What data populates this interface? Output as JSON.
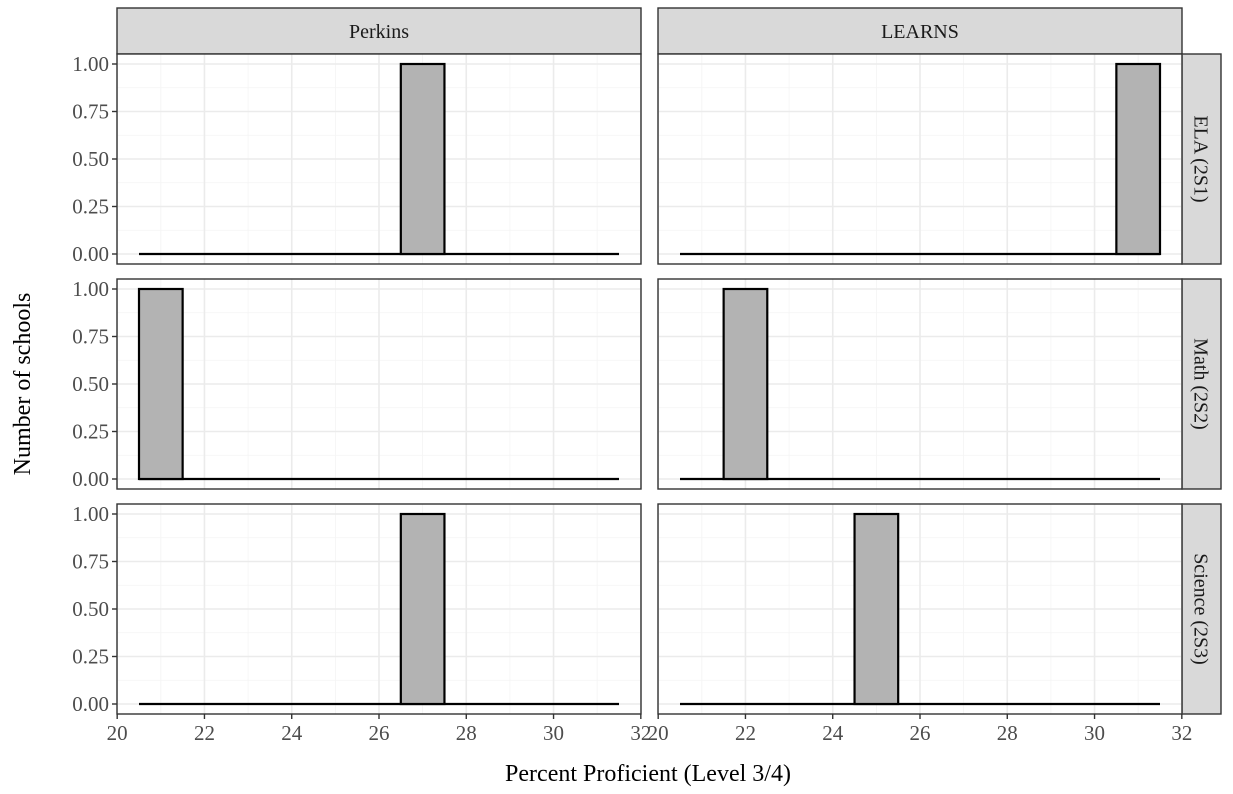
{
  "chart_data": {
    "type": "bar",
    "subtype": "faceted-histogram",
    "xlabel": "Percent Proficient (Level 3/4)",
    "ylabel": "Number of schools",
    "xlim": [
      20,
      32
    ],
    "ylim": [
      0,
      1
    ],
    "x_ticks": [
      "20",
      "22",
      "24",
      "26",
      "28",
      "30",
      "32"
    ],
    "y_ticks": [
      "0.00",
      "0.25",
      "0.50",
      "0.75",
      "1.00"
    ],
    "x_tick_values": [
      20,
      22,
      24,
      26,
      28,
      30,
      32
    ],
    "y_tick_values": [
      0,
      0.25,
      0.5,
      0.75,
      1
    ],
    "bin_width": 1,
    "range_start": 20.5,
    "range_end": 31.5,
    "grid": true,
    "bar_fill": "#b3b3b3",
    "bar_stroke": "#000000",
    "strip_fill": "#d9d9d9",
    "columns": [
      "Perkins",
      "LEARNS"
    ],
    "rows": [
      "ELA (2S1)",
      "Math (2S2)",
      "Science (2S3)"
    ],
    "panels": [
      {
        "column": "Perkins",
        "row": "ELA (2S1)",
        "bins": [
          {
            "x": 27,
            "count": 1
          }
        ]
      },
      {
        "column": "LEARNS",
        "row": "ELA (2S1)",
        "bins": [
          {
            "x": 31,
            "count": 1
          }
        ]
      },
      {
        "column": "Perkins",
        "row": "Math (2S2)",
        "bins": [
          {
            "x": 21,
            "count": 1
          }
        ]
      },
      {
        "column": "LEARNS",
        "row": "Math (2S2)",
        "bins": [
          {
            "x": 22,
            "count": 1
          }
        ]
      },
      {
        "column": "Perkins",
        "row": "Science (2S3)",
        "bins": [
          {
            "x": 27,
            "count": 1
          }
        ]
      },
      {
        "column": "LEARNS",
        "row": "Science (2S3)",
        "bins": [
          {
            "x": 25,
            "count": 1
          }
        ]
      }
    ]
  }
}
